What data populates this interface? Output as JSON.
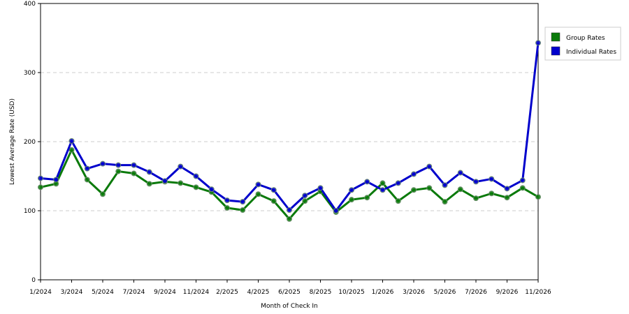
{
  "chart_data": {
    "type": "line",
    "title": "",
    "xlabel": "Month of Check In",
    "ylabel": "Lowest Average Rate (USD)",
    "ylim": [
      0,
      400
    ],
    "yticks": [
      0,
      100,
      200,
      300,
      400
    ],
    "grid": "horizontal dashed",
    "legend_position": "top-right",
    "categories": [
      "1/2024",
      "2/2024",
      "3/2024",
      "4/2024",
      "5/2024",
      "6/2024",
      "7/2024",
      "8/2024",
      "9/2024",
      "10/2024",
      "11/2024",
      "12/2024",
      "2/2025",
      "3/2025",
      "4/2025",
      "5/2025",
      "6/2025",
      "7/2025",
      "8/2025",
      "9/2025",
      "10/2025",
      "11/2025",
      "1/2026",
      "2/2026",
      "3/2026",
      "4/2026",
      "5/2026",
      "6/2026",
      "7/2026",
      "8/2026",
      "9/2026",
      "10/2026",
      "11/2026"
    ],
    "x_tick_labels": [
      {
        "index": 0,
        "label": "1/2024"
      },
      {
        "index": 2,
        "label": "3/2024"
      },
      {
        "index": 4,
        "label": "5/2024"
      },
      {
        "index": 6,
        "label": "7/2024"
      },
      {
        "index": 8,
        "label": "9/2024"
      },
      {
        "index": 10,
        "label": "11/2024"
      },
      {
        "index": 12,
        "label": "2/2025"
      },
      {
        "index": 14,
        "label": "4/2025"
      },
      {
        "index": 16,
        "label": "6/2025"
      },
      {
        "index": 18,
        "label": "8/2025"
      },
      {
        "index": 20,
        "label": "10/2025"
      },
      {
        "index": 22,
        "label": "1/2026"
      },
      {
        "index": 24,
        "label": "3/2026"
      },
      {
        "index": 26,
        "label": "5/2026"
      },
      {
        "index": 28,
        "label": "7/2026"
      },
      {
        "index": 30,
        "label": "9/2026"
      },
      {
        "index": 32,
        "label": "11/2026"
      }
    ],
    "series": [
      {
        "name": "Group Rates",
        "color": "#0a7a0a",
        "values": [
          134,
          139,
          188,
          145,
          124,
          157,
          154,
          139,
          142,
          140,
          134,
          127,
          104,
          101,
          124,
          114,
          88,
          114,
          128,
          98,
          116,
          119,
          140,
          114,
          130,
          133,
          113,
          131,
          118,
          125,
          119,
          133,
          120
        ]
      },
      {
        "name": "Individual Rates",
        "color": "#0000cc",
        "values": [
          147,
          145,
          201,
          161,
          168,
          166,
          166,
          156,
          143,
          164,
          150,
          131,
          115,
          113,
          138,
          130,
          101,
          122,
          133,
          100,
          130,
          142,
          130,
          140,
          153,
          164,
          137,
          155,
          142,
          146,
          132,
          144,
          343
        ]
      }
    ]
  }
}
